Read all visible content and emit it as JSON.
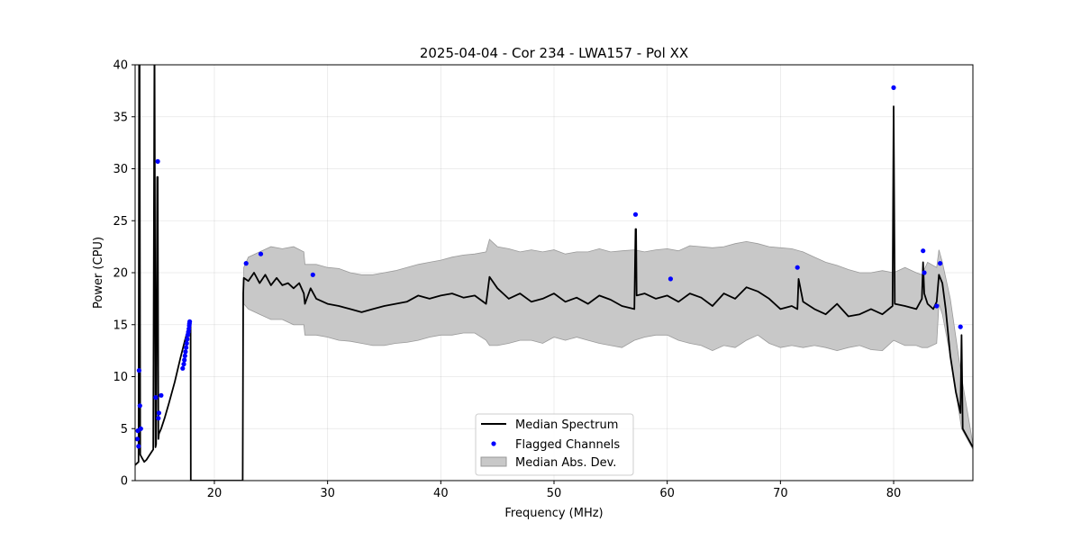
{
  "chart_data": {
    "type": "line",
    "title": "2025-04-04 - Cor 234 - LWA157 - Pol XX",
    "xlabel": "Frequency (MHz)",
    "ylabel": "Power (CPU)",
    "xlim": [
      13,
      87
    ],
    "ylim": [
      0,
      40
    ],
    "xticks": [
      20,
      30,
      40,
      50,
      60,
      70,
      80
    ],
    "yticks": [
      0,
      5,
      10,
      15,
      20,
      25,
      30,
      35,
      40
    ],
    "grid": true,
    "legend_position": "bottom-center",
    "legend": [
      {
        "label": "Median Spectrum",
        "kind": "line",
        "color": "#000000"
      },
      {
        "label": "Flagged Channels",
        "kind": "point",
        "color": "#0000ff"
      },
      {
        "label": "Median Abs. Dev.",
        "kind": "band",
        "color": "#c8c8c8"
      }
    ],
    "series": [
      {
        "name": "Median Spectrum",
        "color": "#000000",
        "x": [
          13.0,
          13.3,
          13.35,
          13.4,
          13.45,
          13.6,
          13.8,
          14.0,
          14.3,
          14.6,
          14.7,
          14.72,
          14.8,
          14.85,
          14.95,
          15.0,
          15.05,
          15.1,
          15.3,
          15.6,
          16.0,
          16.5,
          17.0,
          17.4,
          17.8,
          17.9,
          17.92,
          22.5,
          22.55,
          22.6,
          23.0,
          23.5,
          24.0,
          24.5,
          25.0,
          25.5,
          26.0,
          26.5,
          27.0,
          27.5,
          27.9,
          28.0,
          28.5,
          29.0,
          30.0,
          31.0,
          32.0,
          33.0,
          34.0,
          35.0,
          36.0,
          37.0,
          38.0,
          39.0,
          40.0,
          41.0,
          42.0,
          43.0,
          44.0,
          44.3,
          45.0,
          46.0,
          47.0,
          48.0,
          49.0,
          50.0,
          51.0,
          52.0,
          53.0,
          54.0,
          55.0,
          56.0,
          57.1,
          57.2,
          57.25,
          57.3,
          58.0,
          59.0,
          60.0,
          61.0,
          62.0,
          63.0,
          64.0,
          65.0,
          66.0,
          67.0,
          68.0,
          69.0,
          70.0,
          71.0,
          71.5,
          71.6,
          72.0,
          73.0,
          74.0,
          75.0,
          76.0,
          77.0,
          78.0,
          79.0,
          79.9,
          80.0,
          80.1,
          81.0,
          82.0,
          82.5,
          82.6,
          82.7,
          83.0,
          83.5,
          83.8,
          84.0,
          84.3,
          84.6,
          85.0,
          85.5,
          85.9,
          86.0,
          86.1,
          86.5,
          87.0
        ],
        "y": [
          1.5,
          1.8,
          40,
          40,
          2.5,
          2.2,
          1.8,
          2.0,
          2.5,
          3.0,
          40,
          40,
          3.2,
          3.5,
          29.2,
          29.2,
          4.0,
          4.5,
          5.0,
          6.0,
          7.5,
          9.5,
          11.8,
          13.5,
          15.0,
          15.0,
          0.0,
          0.0,
          18.0,
          19.5,
          19.2,
          20.0,
          19.0,
          19.8,
          18.8,
          19.5,
          18.8,
          19.0,
          18.5,
          19.0,
          18.0,
          17.0,
          18.5,
          17.5,
          17.0,
          16.8,
          16.5,
          16.2,
          16.5,
          16.8,
          17.0,
          17.2,
          17.8,
          17.5,
          17.8,
          18.0,
          17.6,
          17.8,
          17.0,
          19.6,
          18.5,
          17.5,
          18.0,
          17.2,
          17.5,
          18.0,
          17.2,
          17.6,
          17.0,
          17.8,
          17.4,
          16.8,
          16.5,
          24.2,
          24.2,
          17.8,
          18.0,
          17.5,
          17.8,
          17.2,
          18.0,
          17.6,
          16.8,
          18.0,
          17.5,
          18.6,
          18.2,
          17.5,
          16.5,
          16.8,
          16.5,
          19.4,
          17.2,
          16.5,
          16.0,
          17.0,
          15.8,
          16.0,
          16.5,
          16.0,
          16.8,
          36.0,
          17.0,
          16.8,
          16.5,
          17.5,
          21.0,
          18.0,
          17.0,
          16.5,
          17.2,
          19.8,
          19.0,
          16.5,
          12.0,
          8.5,
          6.5,
          14.0,
          5.0,
          4.2,
          3.2
        ]
      },
      {
        "name": "Flagged Channels",
        "color": "#0000ff",
        "x": [
          13.2,
          13.25,
          13.3,
          13.35,
          13.42,
          13.5,
          14.82,
          15.0,
          15.05,
          15.1,
          15.3,
          17.2,
          17.3,
          17.35,
          17.4,
          17.45,
          17.5,
          17.55,
          17.6,
          17.65,
          17.7,
          17.75,
          17.78,
          17.8,
          17.82,
          22.8,
          24.1,
          28.7,
          57.2,
          60.3,
          71.5,
          80.0,
          82.6,
          82.7,
          83.8,
          84.1,
          85.9
        ],
        "y": [
          4.0,
          4.8,
          3.3,
          10.6,
          7.2,
          5.0,
          8.0,
          30.7,
          6.0,
          6.5,
          8.2,
          10.8,
          11.2,
          11.6,
          12.0,
          12.4,
          12.8,
          13.2,
          13.6,
          14.0,
          14.3,
          14.6,
          14.9,
          15.1,
          15.3,
          20.9,
          21.8,
          19.8,
          25.6,
          19.4,
          20.5,
          37.8,
          22.1,
          20.0,
          16.8,
          20.9,
          14.8
        ]
      },
      {
        "name": "Median Abs. Dev.",
        "color": "#c8c8c8",
        "x": [
          22.6,
          23.0,
          24.0,
          25.0,
          26.0,
          27.0,
          27.9,
          28.0,
          29.0,
          30.0,
          31.0,
          32.0,
          33.0,
          34.0,
          35.0,
          36.0,
          37.0,
          38.0,
          39.0,
          40.0,
          41.0,
          42.0,
          43.0,
          44.0,
          44.3,
          45.0,
          46.0,
          47.0,
          48.0,
          49.0,
          50.0,
          51.0,
          52.0,
          53.0,
          54.0,
          55.0,
          56.0,
          57.1,
          58.0,
          59.0,
          60.0,
          61.0,
          62.0,
          63.0,
          64.0,
          65.0,
          66.0,
          67.0,
          68.0,
          69.0,
          70.0,
          71.0,
          72.0,
          73.0,
          74.0,
          75.0,
          76.0,
          77.0,
          78.0,
          79.0,
          80.0,
          81.0,
          82.0,
          82.5,
          83.0,
          83.8,
          84.0,
          84.3,
          85.0,
          86.0,
          87.0
        ],
        "upper": [
          20.5,
          21.5,
          22.0,
          22.5,
          22.3,
          22.5,
          22.0,
          20.8,
          20.8,
          20.5,
          20.4,
          20.0,
          19.8,
          19.8,
          20.0,
          20.2,
          20.5,
          20.8,
          21.0,
          21.2,
          21.5,
          21.7,
          21.8,
          22.0,
          23.2,
          22.5,
          22.3,
          22.0,
          22.2,
          22.0,
          22.2,
          21.8,
          22.0,
          22.0,
          22.3,
          22.0,
          22.1,
          22.2,
          22.0,
          22.2,
          22.3,
          22.1,
          22.6,
          22.5,
          22.4,
          22.5,
          22.8,
          23.0,
          22.8,
          22.5,
          22.4,
          22.3,
          22.0,
          21.5,
          21.0,
          20.7,
          20.3,
          20.0,
          20.0,
          20.2,
          20.0,
          20.5,
          20.0,
          19.8,
          21.0,
          20.5,
          22.2,
          21.0,
          17.5,
          10.0,
          3.5
        ],
        "lower": [
          17.0,
          16.5,
          16.0,
          15.5,
          15.5,
          15.0,
          15.0,
          14.0,
          14.0,
          13.8,
          13.5,
          13.4,
          13.2,
          13.0,
          13.0,
          13.2,
          13.3,
          13.5,
          13.8,
          14.0,
          14.0,
          14.2,
          14.2,
          13.5,
          13.0,
          13.0,
          13.2,
          13.5,
          13.5,
          13.2,
          13.8,
          13.5,
          13.8,
          13.5,
          13.2,
          13.0,
          12.8,
          13.5,
          13.8,
          14.0,
          14.0,
          13.5,
          13.2,
          13.0,
          12.5,
          13.0,
          12.8,
          13.5,
          14.0,
          13.2,
          12.8,
          13.0,
          12.8,
          13.0,
          12.8,
          12.5,
          12.8,
          13.0,
          12.6,
          12.5,
          13.5,
          13.0,
          13.0,
          12.8,
          12.8,
          13.2,
          17.0,
          16.0,
          12.0,
          5.0,
          3.0
        ]
      }
    ]
  }
}
